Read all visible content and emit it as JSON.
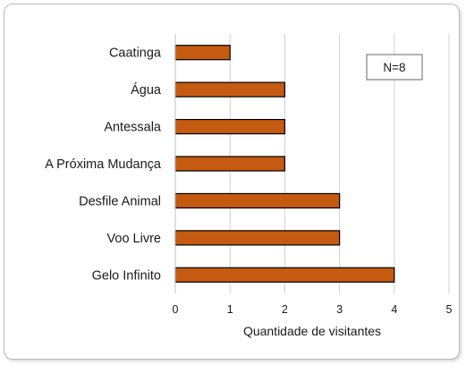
{
  "chart_data": {
    "type": "bar",
    "orientation": "horizontal",
    "categories": [
      "Caatinga",
      "Água",
      "Antessala",
      "A Próxima Mudança",
      "Desfile Animal",
      "Voo Livre",
      "Gelo Infinito"
    ],
    "values": [
      1,
      2,
      2,
      2,
      3,
      3,
      4
    ],
    "xlabel": "Quantidade de visitantes",
    "xlim": [
      0,
      5
    ],
    "xticks": [
      0,
      1,
      2,
      3,
      4,
      5
    ],
    "grid": "vertical",
    "annotation": "N=8",
    "bar_color": "#c55a11",
    "bar_edge_color": "#000000",
    "grid_color": "#d0d0d0"
  }
}
